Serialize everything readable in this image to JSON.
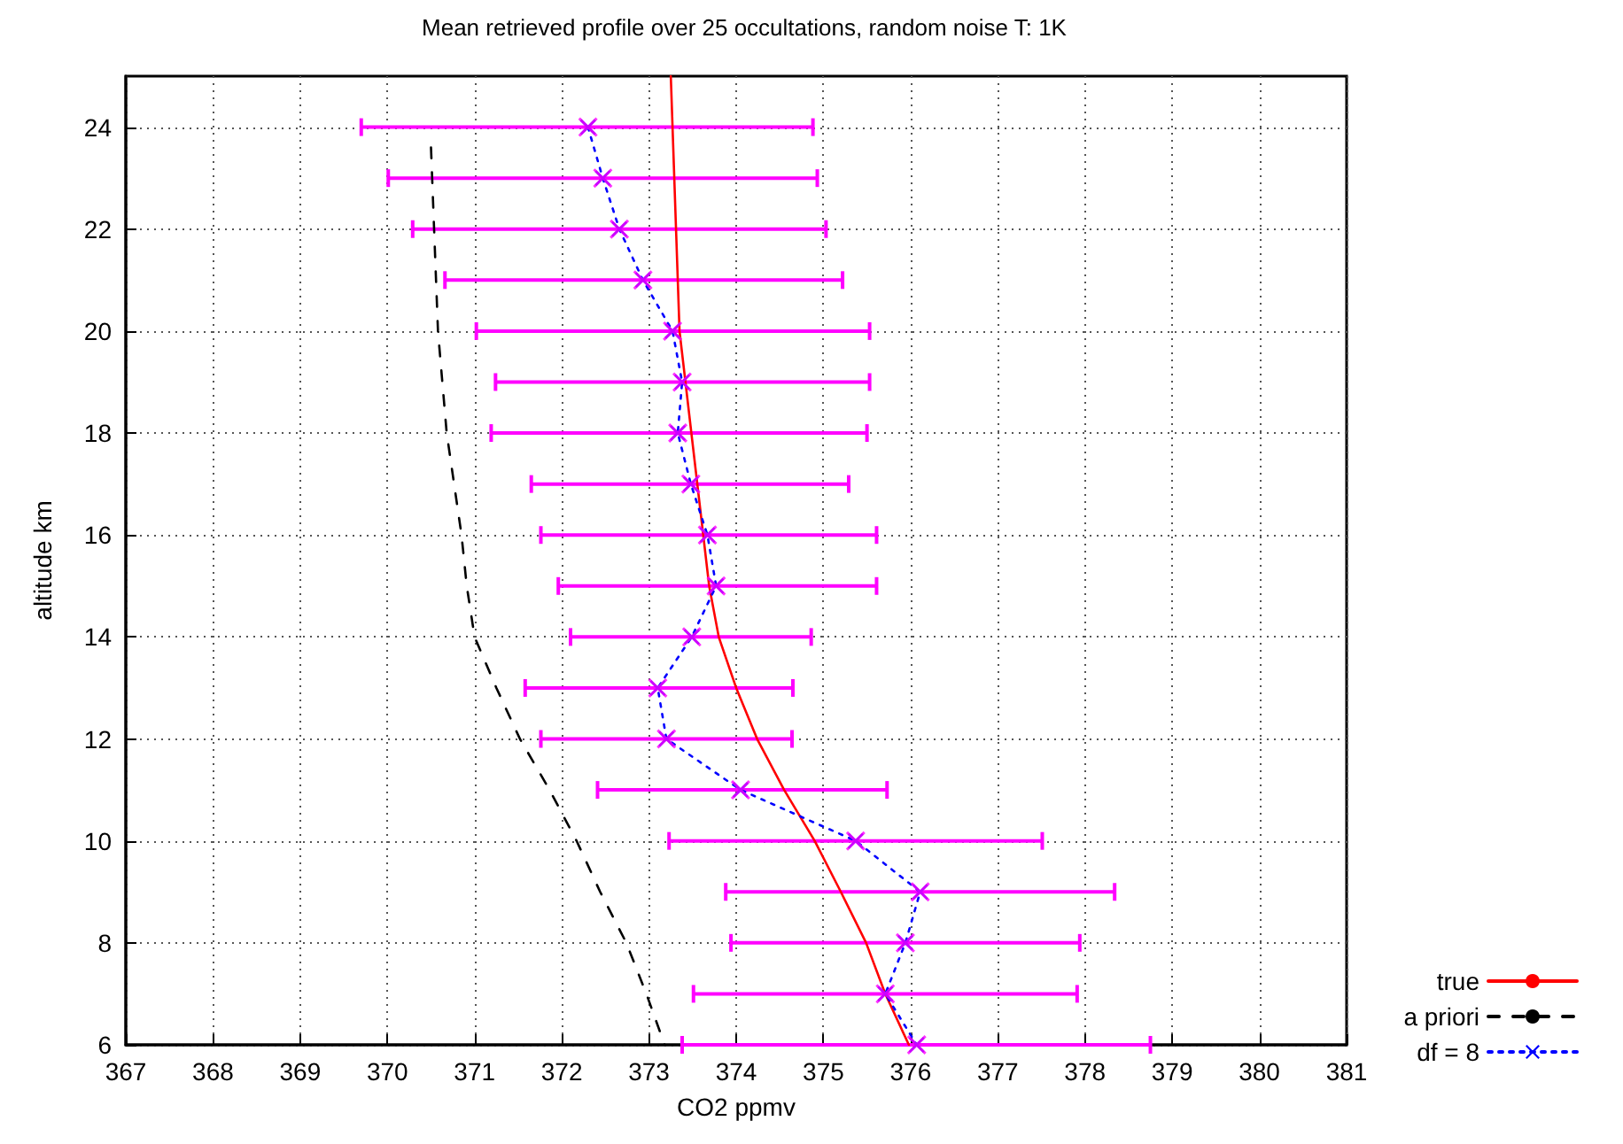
{
  "chart_data": {
    "type": "line",
    "title": "Mean retrieved profile over 25 occultations, random noise T: 1K",
    "xlabel": "CO2 ppmv",
    "ylabel": "altitude km",
    "xlim": [
      367,
      381
    ],
    "xticks": [
      367,
      368,
      369,
      370,
      371,
      372,
      373,
      374,
      375,
      376,
      377,
      378,
      379,
      380,
      381
    ],
    "ylim": [
      6,
      25
    ],
    "yticks": [
      6,
      8,
      10,
      12,
      14,
      16,
      18,
      20,
      22,
      24
    ],
    "grid": true,
    "legend": "bottom right",
    "series": [
      {
        "name": "true",
        "color": "#ff0000",
        "line_style": "solid",
        "marker": "none",
        "x": [
          373.25,
          373.27,
          373.35,
          373.69,
          373.8,
          374.0,
          374.24,
          374.55,
          374.9,
          375.2,
          375.49,
          375.71,
          375.98
        ],
        "values": [
          25,
          24,
          20,
          15,
          14,
          13,
          12,
          11,
          10,
          9,
          8,
          7,
          6
        ]
      },
      {
        "name": "a priori",
        "color": "#000000",
        "line_style": "dashed",
        "marker": "none",
        "x": [
          370.5,
          370.58,
          370.68,
          370.85,
          370.91,
          371.0,
          371.25,
          371.52,
          371.86,
          372.17,
          372.44,
          372.74,
          372.97,
          373.18
        ],
        "values": [
          23.6,
          20,
          18,
          16,
          15,
          14,
          13,
          12,
          11,
          10,
          9,
          8,
          7,
          6
        ]
      },
      {
        "name": "df = 8",
        "color": "#0000ff",
        "line_style": "dotted",
        "marker": "cross",
        "x": [
          372.3,
          372.47,
          372.66,
          372.93,
          373.27,
          373.38,
          373.33,
          373.48,
          373.67,
          373.77,
          373.49,
          373.1,
          373.2,
          374.05,
          375.37,
          376.11,
          375.94,
          375.71,
          376.07
        ],
        "values": [
          24,
          23,
          22,
          21,
          20,
          19,
          18,
          17,
          16,
          15,
          14,
          13,
          12,
          11,
          10,
          9,
          8,
          7,
          6
        ],
        "xerrors": [
          [
            369.7,
            374.88
          ],
          [
            370.01,
            374.93
          ],
          [
            370.29,
            375.03
          ],
          [
            370.66,
            375.22
          ],
          [
            371.02,
            375.53
          ],
          [
            371.24,
            375.53
          ],
          [
            371.19,
            375.5
          ],
          [
            371.65,
            375.29
          ],
          [
            371.76,
            375.61
          ],
          [
            371.96,
            375.61
          ],
          [
            372.1,
            374.86
          ],
          [
            371.58,
            374.65
          ],
          [
            371.76,
            374.64
          ],
          [
            372.41,
            375.73
          ],
          [
            373.23,
            377.51
          ],
          [
            373.88,
            378.34
          ],
          [
            373.94,
            377.94
          ],
          [
            373.51,
            377.91
          ],
          [
            373.38,
            378.75
          ]
        ]
      }
    ]
  }
}
